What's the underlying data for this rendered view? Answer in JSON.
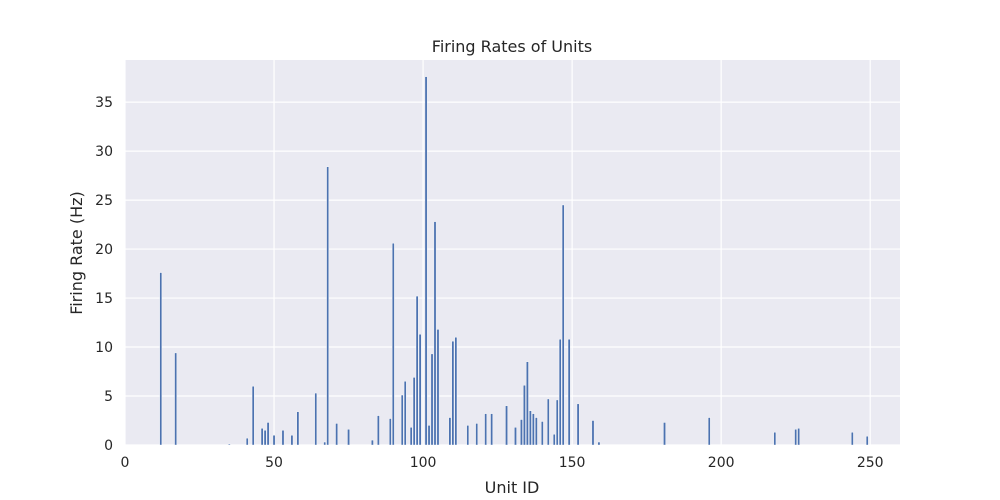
{
  "chart_data": {
    "type": "bar",
    "title": "Firing Rates of Units",
    "xlabel": "Unit ID",
    "ylabel": "Firing Rate (Hz)",
    "xlim": [
      0,
      260
    ],
    "ylim": [
      0,
      39.3
    ],
    "xticks": [
      0,
      50,
      100,
      150,
      200,
      250
    ],
    "yticks": [
      0,
      5,
      10,
      15,
      20,
      25,
      30,
      35
    ],
    "grid": true,
    "bar_color": "#4c72b0",
    "background_color": "#eaeaf2",
    "grid_color": "#ffffff",
    "points": [
      {
        "x": 12,
        "y": 17.6
      },
      {
        "x": 17,
        "y": 9.4
      },
      {
        "x": 35,
        "y": 0.1
      },
      {
        "x": 41,
        "y": 0.7
      },
      {
        "x": 43,
        "y": 6.0
      },
      {
        "x": 46,
        "y": 1.7
      },
      {
        "x": 47,
        "y": 1.5
      },
      {
        "x": 48,
        "y": 2.3
      },
      {
        "x": 50,
        "y": 1.0
      },
      {
        "x": 53,
        "y": 1.5
      },
      {
        "x": 56,
        "y": 1.0
      },
      {
        "x": 58,
        "y": 3.4
      },
      {
        "x": 64,
        "y": 5.3
      },
      {
        "x": 67,
        "y": 0.3
      },
      {
        "x": 68,
        "y": 28.4
      },
      {
        "x": 71,
        "y": 2.2
      },
      {
        "x": 75,
        "y": 1.6
      },
      {
        "x": 83,
        "y": 0.5
      },
      {
        "x": 85,
        "y": 3.0
      },
      {
        "x": 89,
        "y": 2.7
      },
      {
        "x": 90,
        "y": 20.6
      },
      {
        "x": 93,
        "y": 5.1
      },
      {
        "x": 94,
        "y": 6.5
      },
      {
        "x": 96,
        "y": 1.8
      },
      {
        "x": 97,
        "y": 6.9
      },
      {
        "x": 98,
        "y": 15.2
      },
      {
        "x": 99,
        "y": 11.3
      },
      {
        "x": 101,
        "y": 37.6
      },
      {
        "x": 102,
        "y": 2.0
      },
      {
        "x": 103,
        "y": 9.3
      },
      {
        "x": 104,
        "y": 22.8
      },
      {
        "x": 105,
        "y": 11.8
      },
      {
        "x": 109,
        "y": 2.8
      },
      {
        "x": 110,
        "y": 10.6
      },
      {
        "x": 111,
        "y": 11.0
      },
      {
        "x": 115,
        "y": 2.0
      },
      {
        "x": 118,
        "y": 2.2
      },
      {
        "x": 121,
        "y": 3.2
      },
      {
        "x": 123,
        "y": 3.2
      },
      {
        "x": 128,
        "y": 4.0
      },
      {
        "x": 131,
        "y": 1.8
      },
      {
        "x": 133,
        "y": 2.6
      },
      {
        "x": 134,
        "y": 6.1
      },
      {
        "x": 135,
        "y": 8.5
      },
      {
        "x": 136,
        "y": 3.5
      },
      {
        "x": 137,
        "y": 3.2
      },
      {
        "x": 138,
        "y": 2.8
      },
      {
        "x": 140,
        "y": 2.4
      },
      {
        "x": 142,
        "y": 4.7
      },
      {
        "x": 144,
        "y": 1.1
      },
      {
        "x": 145,
        "y": 4.6
      },
      {
        "x": 146,
        "y": 10.8
      },
      {
        "x": 147,
        "y": 24.5
      },
      {
        "x": 149,
        "y": 10.8
      },
      {
        "x": 152,
        "y": 4.2
      },
      {
        "x": 157,
        "y": 2.5
      },
      {
        "x": 159,
        "y": 0.3
      },
      {
        "x": 181,
        "y": 2.3
      },
      {
        "x": 196,
        "y": 2.8
      },
      {
        "x": 218,
        "y": 1.3
      },
      {
        "x": 225,
        "y": 1.6
      },
      {
        "x": 226,
        "y": 1.7
      },
      {
        "x": 244,
        "y": 1.3
      },
      {
        "x": 249,
        "y": 0.9
      }
    ]
  }
}
